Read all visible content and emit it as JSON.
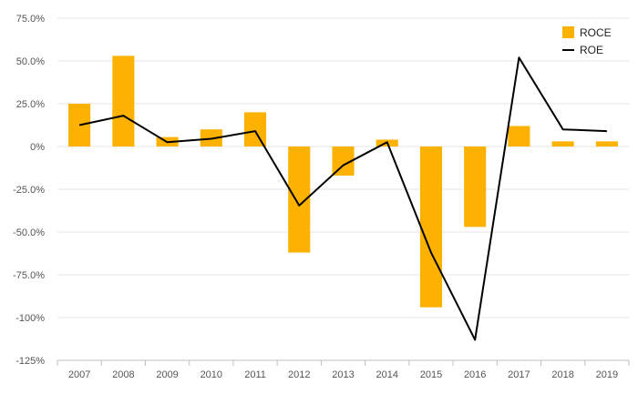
{
  "chart_data": {
    "type": "bar",
    "categories": [
      "2007",
      "2008",
      "2009",
      "2010",
      "2011",
      "2012",
      "2013",
      "2014",
      "2015",
      "2016",
      "2017",
      "2018",
      "2019"
    ],
    "series": [
      {
        "name": "ROCE",
        "type": "bar",
        "color": "#FDB100",
        "values": [
          25,
          53,
          5.5,
          10,
          20,
          -62,
          -17,
          4,
          -94,
          -47,
          12,
          3,
          3
        ]
      },
      {
        "name": "ROE",
        "type": "line",
        "color": "#000000",
        "values": [
          12.5,
          18,
          2.5,
          4.5,
          9,
          -34.5,
          -11,
          2.5,
          -62,
          -113,
          52,
          10,
          9
        ]
      }
    ],
    "yticks": [
      {
        "value": 75,
        "label": "75.0%"
      },
      {
        "value": 50,
        "label": "50.0%"
      },
      {
        "value": 25,
        "label": "25.0%"
      },
      {
        "value": 0,
        "label": "0%"
      },
      {
        "value": -25,
        "label": "-25.0%"
      },
      {
        "value": -50,
        "label": "-50.0%"
      },
      {
        "value": -75,
        "label": "-75.0%"
      },
      {
        "value": -100,
        "label": "-100%"
      },
      {
        "value": -125,
        "label": "-125%"
      }
    ],
    "ylim": [
      -125,
      75
    ],
    "grid": true,
    "legend_position": "top-right",
    "title": "",
    "xlabel": "",
    "ylabel": ""
  }
}
